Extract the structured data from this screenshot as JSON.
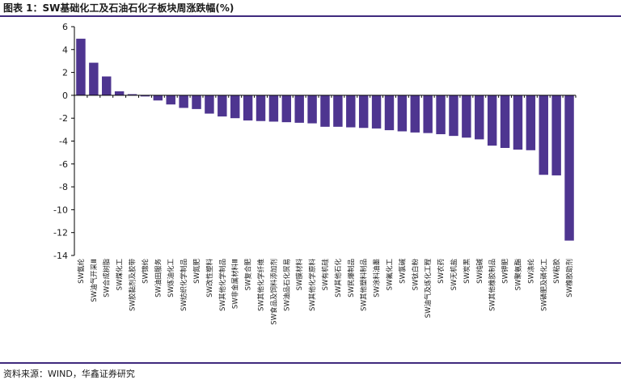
{
  "title": "图表 1：SW基础化工及石油石化子板块周涨跌幅(%)",
  "source": "资料来源：WIND，华鑫证券研究",
  "colors": {
    "bar": "#4e3590",
    "axis": "#000000",
    "rule": "#3f2a7d"
  },
  "chart_data": {
    "type": "bar",
    "title": "图表 1：SW基础化工及石油石化子板块周涨跌幅(%)",
    "xlabel": "",
    "ylabel": "",
    "ylim": [
      -14,
      6
    ],
    "yticks": [
      6,
      4,
      2,
      0,
      -2,
      -4,
      -6,
      -8,
      -10,
      -12,
      -14
    ],
    "grid": false,
    "legend": "none",
    "categories": [
      "SW氨纶",
      "SW油气开采Ⅲ",
      "SW合成树脂",
      "SW煤化工",
      "SW胶黏剂及胶带",
      "SW锦纶",
      "SW油田服务",
      "SW炼油化工",
      "SW纺织化学制品",
      "SW氮肥",
      "SW改性塑料",
      "SW其他化学制品",
      "SW非金属材料Ⅲ",
      "SW复合肥",
      "SW其他化学纤维",
      "SW食品及饲料添加剂",
      "SW油品石化贸易",
      "SW膜材料",
      "SW其他化学原料",
      "SW有机硅",
      "SW其他石化",
      "SW民爆制品",
      "SW其他塑料制品",
      "SW涂料油墨",
      "SW氟化工",
      "SW氯碱",
      "SW钛白粉",
      "SW油气及炼化工程",
      "SW农药",
      "SW无机盐",
      "SW炭黑",
      "SW纯碱",
      "SW其他橡胶制品",
      "SW钾肥",
      "SW聚氨酯",
      "SW涤纶",
      "SW磷肥及磷化工",
      "SW粘胶",
      "SW橡胶助剂"
    ],
    "values": [
      4.95,
      2.85,
      1.65,
      0.35,
      0.1,
      -0.1,
      -0.45,
      -0.8,
      -1.1,
      -1.2,
      -1.6,
      -1.85,
      -2.0,
      -2.2,
      -2.25,
      -2.3,
      -2.35,
      -2.4,
      -2.45,
      -2.75,
      -2.75,
      -2.8,
      -2.85,
      -2.9,
      -3.05,
      -3.15,
      -3.25,
      -3.3,
      -3.4,
      -3.55,
      -3.7,
      -3.85,
      -4.4,
      -4.6,
      -4.75,
      -4.8,
      -6.95,
      -7.0,
      -12.7
    ]
  }
}
